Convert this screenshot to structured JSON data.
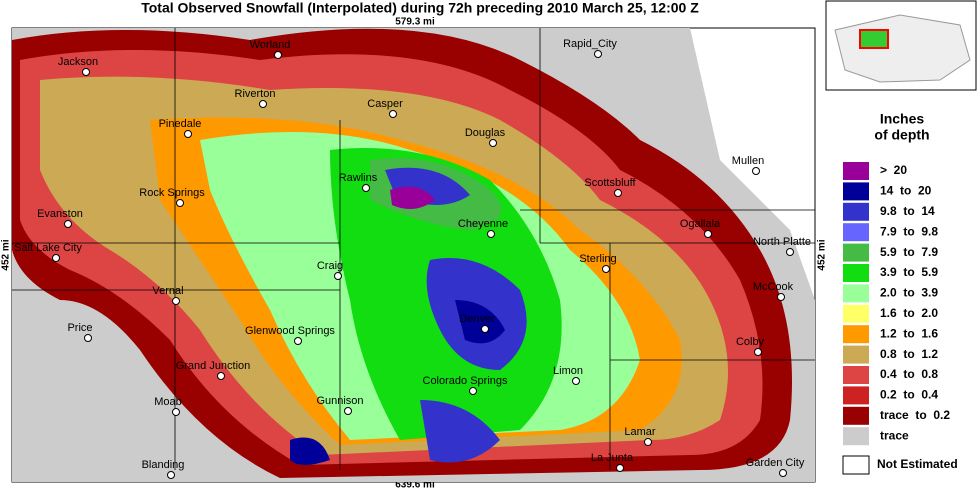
{
  "header": {
    "title": "Total Observed Snowfall (Interpolated) during 72h preceding 2010 March 25, 12:00 Z"
  },
  "scale": {
    "top": "579.3 mi",
    "bottom": "639.6 mi",
    "left": "452 mi",
    "right": "452 mi"
  },
  "cities": [
    "Jackson",
    "Worland",
    "Rapid_City",
    "Riverton",
    "Casper",
    "Pinedale",
    "Douglas",
    "Mullen",
    "Rawlins",
    "Scottsbluff",
    "Rock Springs",
    "Evanston",
    "Cheyenne",
    "Ogallala",
    "Salt Lake City",
    "North Platte",
    "Craig",
    "Sterling",
    "Vernal",
    "McCook",
    "Denver",
    "Price",
    "Glenwood Springs",
    "Colby",
    "Limon",
    "Grand Junction",
    "Colorado Springs",
    "Moab",
    "Gunnison",
    "Lamar",
    "La Junta",
    "Blanding",
    "Garden City"
  ],
  "legend": {
    "title": [
      "Inches",
      "of depth"
    ],
    "items": [
      {
        "label": ">  20",
        "color": "#990099"
      },
      {
        "label": "14  to  20",
        "color": "#000099"
      },
      {
        "label": "9.8  to  14",
        "color": "#3333cc"
      },
      {
        "label": "7.9  to  9.8",
        "color": "#6666ff"
      },
      {
        "label": "5.9  to  7.9",
        "color": "#44bb44"
      },
      {
        "label": "3.9  to  5.9",
        "color": "#11dd11"
      },
      {
        "label": "2.0  to  3.9",
        "color": "#99ff99"
      },
      {
        "label": "1.6  to  2.0",
        "color": "#ffff66"
      },
      {
        "label": "1.2  to  1.6",
        "color": "#ff9900"
      },
      {
        "label": "0.8  to  1.2",
        "color": "#ccaa55"
      },
      {
        "label": "0.4  to  0.8",
        "color": "#dd4444"
      },
      {
        "label": "0.2  to  0.4",
        "color": "#cc2222"
      },
      {
        "label": "trace  to  0.2",
        "color": "#990000"
      },
      {
        "label": "trace",
        "color": "#cccccc"
      }
    ],
    "not_estimated": "Not Estimated"
  }
}
